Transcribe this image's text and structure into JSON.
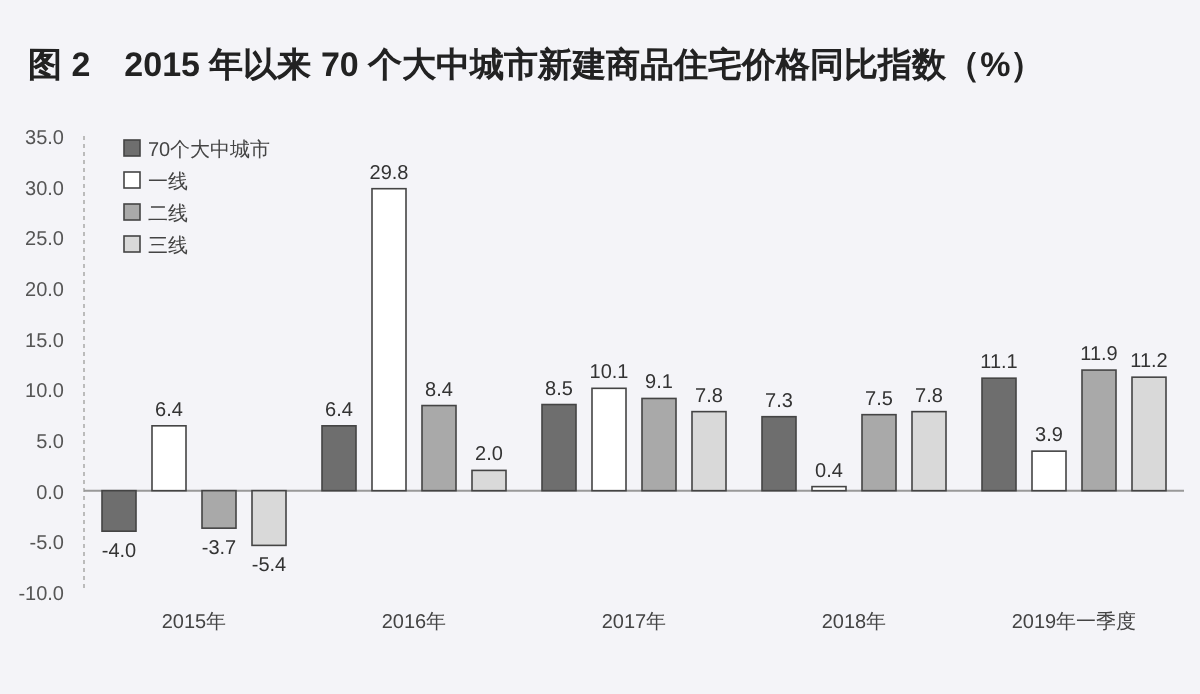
{
  "chart_data": {
    "type": "bar",
    "title": "图 2　2015 年以来 70 个大中城市新建商品住宅价格同比指数（%）",
    "categories": [
      "2015年",
      "2016年",
      "2017年",
      "2018年",
      "2019年一季度"
    ],
    "series": [
      {
        "name": "70个大中城市",
        "color": "#6e6e6e",
        "values": [
          -4.0,
          6.4,
          8.5,
          7.3,
          11.1
        ],
        "value_labels": [
          "-4.0",
          "6.4",
          "8.5",
          "7.3",
          "11.1"
        ]
      },
      {
        "name": "一线",
        "color": "#ffffff",
        "values": [
          6.4,
          29.8,
          10.1,
          0.4,
          3.9
        ],
        "value_labels": [
          "6.4",
          "29.8",
          "10.1",
          "0.4",
          "3.9"
        ]
      },
      {
        "name": "二线",
        "color": "#a9a9a9",
        "values": [
          -3.7,
          8.4,
          9.1,
          7.5,
          11.9
        ],
        "value_labels": [
          "-3.7",
          "8.4",
          "9.1",
          "7.5",
          "11.9"
        ]
      },
      {
        "name": "三线",
        "color": "#d9d9d9",
        "values": [
          -5.4,
          2.0,
          7.8,
          7.8,
          11.2
        ],
        "value_labels": [
          "-5.4",
          "2.0",
          "7.8",
          "7.8",
          "11.2"
        ]
      }
    ],
    "ylim": [
      -10.0,
      35.0
    ],
    "yticks": [
      {
        "value": -10,
        "label": "-10.0"
      },
      {
        "value": -5,
        "label": "-5.0"
      },
      {
        "value": 0,
        "label": "0.0"
      },
      {
        "value": 5,
        "label": "5.0"
      },
      {
        "value": 10,
        "label": "10.0"
      },
      {
        "value": 15,
        "label": "15.0"
      },
      {
        "value": 20,
        "label": "20.0"
      },
      {
        "value": 25,
        "label": "25.0"
      },
      {
        "value": 30,
        "label": "30.0"
      },
      {
        "value": 35,
        "label": "35.0"
      }
    ],
    "legend": "top left"
  }
}
